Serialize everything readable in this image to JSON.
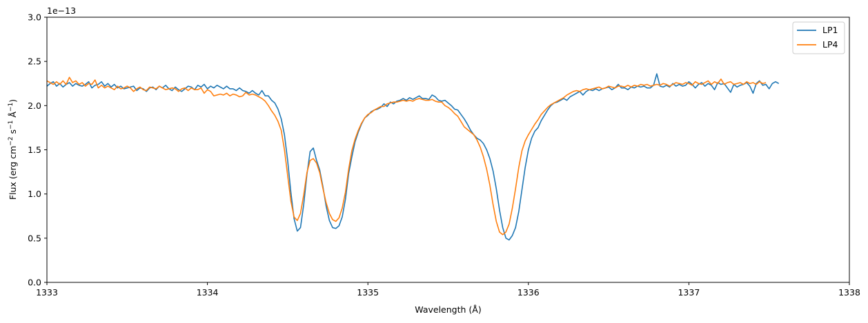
{
  "chart_data": {
    "type": "line",
    "title": "",
    "xlabel": "Wavelength (Å)",
    "ylabel_parts": {
      "prefix": "Flux (erg cm",
      "exp1": "−2",
      "mid1": " s",
      "exp2": "−1",
      "mid2": " Å",
      "exp3": "−1",
      "suffix": ")"
    },
    "offset_text": "1e−13",
    "xlim": [
      1333,
      1338
    ],
    "ylim": [
      0,
      3.0
    ],
    "y_scale_factor": 1e-13,
    "xticks": [
      1333,
      1334,
      1335,
      1336,
      1337,
      1338
    ],
    "xtick_labels": [
      "1333",
      "1334",
      "1335",
      "1336",
      "1337",
      "1338"
    ],
    "yticks": [
      0,
      0.5,
      1.0,
      1.5,
      2.0,
      2.5,
      3.0
    ],
    "ytick_labels": [
      "0.0",
      "0.5",
      "1.0",
      "1.5",
      "2.0",
      "2.5",
      "3.0"
    ],
    "grid": false,
    "legend_position": "top-right",
    "sample_step": 0.02,
    "series": [
      {
        "name": "LP1",
        "color": "#1f77b4",
        "x_start": 1333.0,
        "values": [
          2.22,
          2.25,
          2.27,
          2.22,
          2.25,
          2.21,
          2.24,
          2.26,
          2.22,
          2.25,
          2.23,
          2.22,
          2.24,
          2.27,
          2.2,
          2.23,
          2.24,
          2.27,
          2.22,
          2.25,
          2.21,
          2.24,
          2.2,
          2.22,
          2.19,
          2.2,
          2.21,
          2.22,
          2.17,
          2.2,
          2.19,
          2.16,
          2.2,
          2.21,
          2.18,
          2.22,
          2.2,
          2.23,
          2.19,
          2.17,
          2.21,
          2.18,
          2.16,
          2.19,
          2.22,
          2.21,
          2.18,
          2.23,
          2.21,
          2.24,
          2.19,
          2.22,
          2.2,
          2.23,
          2.21,
          2.19,
          2.22,
          2.19,
          2.19,
          2.17,
          2.2,
          2.17,
          2.16,
          2.14,
          2.17,
          2.14,
          2.12,
          2.17,
          2.11,
          2.11,
          2.06,
          2.03,
          1.96,
          1.85,
          1.67,
          1.38,
          1.02,
          0.72,
          0.58,
          0.62,
          0.88,
          1.22,
          1.48,
          1.52,
          1.38,
          1.27,
          1.08,
          0.86,
          0.7,
          0.62,
          0.61,
          0.64,
          0.74,
          0.94,
          1.23,
          1.42,
          1.59,
          1.7,
          1.79,
          1.86,
          1.89,
          1.93,
          1.95,
          1.96,
          1.98,
          2.02,
          1.99,
          2.04,
          2.02,
          2.05,
          2.06,
          2.08,
          2.06,
          2.09,
          2.07,
          2.09,
          2.11,
          2.08,
          2.08,
          2.07,
          2.12,
          2.1,
          2.06,
          2.05,
          2.06,
          2.03,
          2.0,
          1.96,
          1.95,
          1.9,
          1.85,
          1.79,
          1.72,
          1.67,
          1.63,
          1.61,
          1.57,
          1.5,
          1.4,
          1.26,
          1.06,
          0.82,
          0.62,
          0.5,
          0.48,
          0.53,
          0.62,
          0.8,
          1.05,
          1.3,
          1.5,
          1.63,
          1.71,
          1.75,
          1.83,
          1.89,
          1.95,
          2.0,
          2.03,
          2.04,
          2.06,
          2.08,
          2.06,
          2.1,
          2.12,
          2.14,
          2.16,
          2.12,
          2.16,
          2.18,
          2.17,
          2.19,
          2.17,
          2.19,
          2.2,
          2.21,
          2.18,
          2.2,
          2.24,
          2.2,
          2.2,
          2.18,
          2.21,
          2.2,
          2.22,
          2.21,
          2.22,
          2.2,
          2.2,
          2.23,
          2.36,
          2.22,
          2.21,
          2.23,
          2.21,
          2.25,
          2.22,
          2.24,
          2.22,
          2.23,
          2.27,
          2.24,
          2.2,
          2.24,
          2.26,
          2.22,
          2.25,
          2.23,
          2.18,
          2.26,
          2.24,
          2.25,
          2.2,
          2.15,
          2.24,
          2.21,
          2.23,
          2.24,
          2.26,
          2.22,
          2.14,
          2.25,
          2.28,
          2.23,
          2.24,
          2.19,
          2.25,
          2.27,
          2.25
        ]
      },
      {
        "name": "LP4",
        "color": "#ff7f0e",
        "x_start": 1333.0,
        "values": [
          2.28,
          2.26,
          2.24,
          2.27,
          2.24,
          2.28,
          2.24,
          2.32,
          2.26,
          2.28,
          2.24,
          2.26,
          2.22,
          2.25,
          2.24,
          2.29,
          2.2,
          2.23,
          2.2,
          2.22,
          2.2,
          2.18,
          2.22,
          2.19,
          2.2,
          2.22,
          2.2,
          2.16,
          2.19,
          2.21,
          2.18,
          2.17,
          2.21,
          2.2,
          2.19,
          2.22,
          2.2,
          2.18,
          2.19,
          2.2,
          2.19,
          2.16,
          2.19,
          2.2,
          2.17,
          2.2,
          2.18,
          2.18,
          2.2,
          2.14,
          2.18,
          2.16,
          2.11,
          2.12,
          2.13,
          2.12,
          2.14,
          2.11,
          2.13,
          2.12,
          2.1,
          2.11,
          2.15,
          2.12,
          2.13,
          2.12,
          2.1,
          2.08,
          2.05,
          2.0,
          1.94,
          1.89,
          1.82,
          1.72,
          1.5,
          1.21,
          0.92,
          0.74,
          0.7,
          0.78,
          0.99,
          1.24,
          1.38,
          1.4,
          1.35,
          1.24,
          1.06,
          0.9,
          0.78,
          0.71,
          0.69,
          0.73,
          0.84,
          1.02,
          1.28,
          1.49,
          1.62,
          1.72,
          1.8,
          1.86,
          1.9,
          1.92,
          1.95,
          1.97,
          1.99,
          1.99,
          2.02,
          2.03,
          2.04,
          2.04,
          2.05,
          2.06,
          2.05,
          2.06,
          2.05,
          2.07,
          2.08,
          2.07,
          2.06,
          2.06,
          2.07,
          2.05,
          2.04,
          2.04,
          2.0,
          1.98,
          1.95,
          1.91,
          1.88,
          1.82,
          1.76,
          1.73,
          1.7,
          1.67,
          1.61,
          1.53,
          1.42,
          1.28,
          1.1,
          0.88,
          0.69,
          0.57,
          0.54,
          0.57,
          0.66,
          0.84,
          1.06,
          1.3,
          1.49,
          1.6,
          1.67,
          1.73,
          1.79,
          1.84,
          1.9,
          1.94,
          1.98,
          2.01,
          2.03,
          2.05,
          2.07,
          2.09,
          2.12,
          2.14,
          2.16,
          2.17,
          2.16,
          2.18,
          2.19,
          2.18,
          2.19,
          2.2,
          2.21,
          2.19,
          2.2,
          2.22,
          2.21,
          2.2,
          2.22,
          2.22,
          2.21,
          2.23,
          2.21,
          2.23,
          2.22,
          2.24,
          2.23,
          2.24,
          2.22,
          2.23,
          2.24,
          2.23,
          2.25,
          2.24,
          2.22,
          2.24,
          2.26,
          2.25,
          2.24,
          2.26,
          2.25,
          2.23,
          2.27,
          2.25,
          2.24,
          2.26,
          2.28,
          2.24,
          2.27,
          2.25,
          2.3,
          2.24,
          2.26,
          2.27,
          2.24,
          2.25,
          2.26,
          2.24,
          2.27,
          2.25,
          2.26,
          2.24,
          2.27,
          2.25,
          2.26
        ]
      }
    ]
  }
}
